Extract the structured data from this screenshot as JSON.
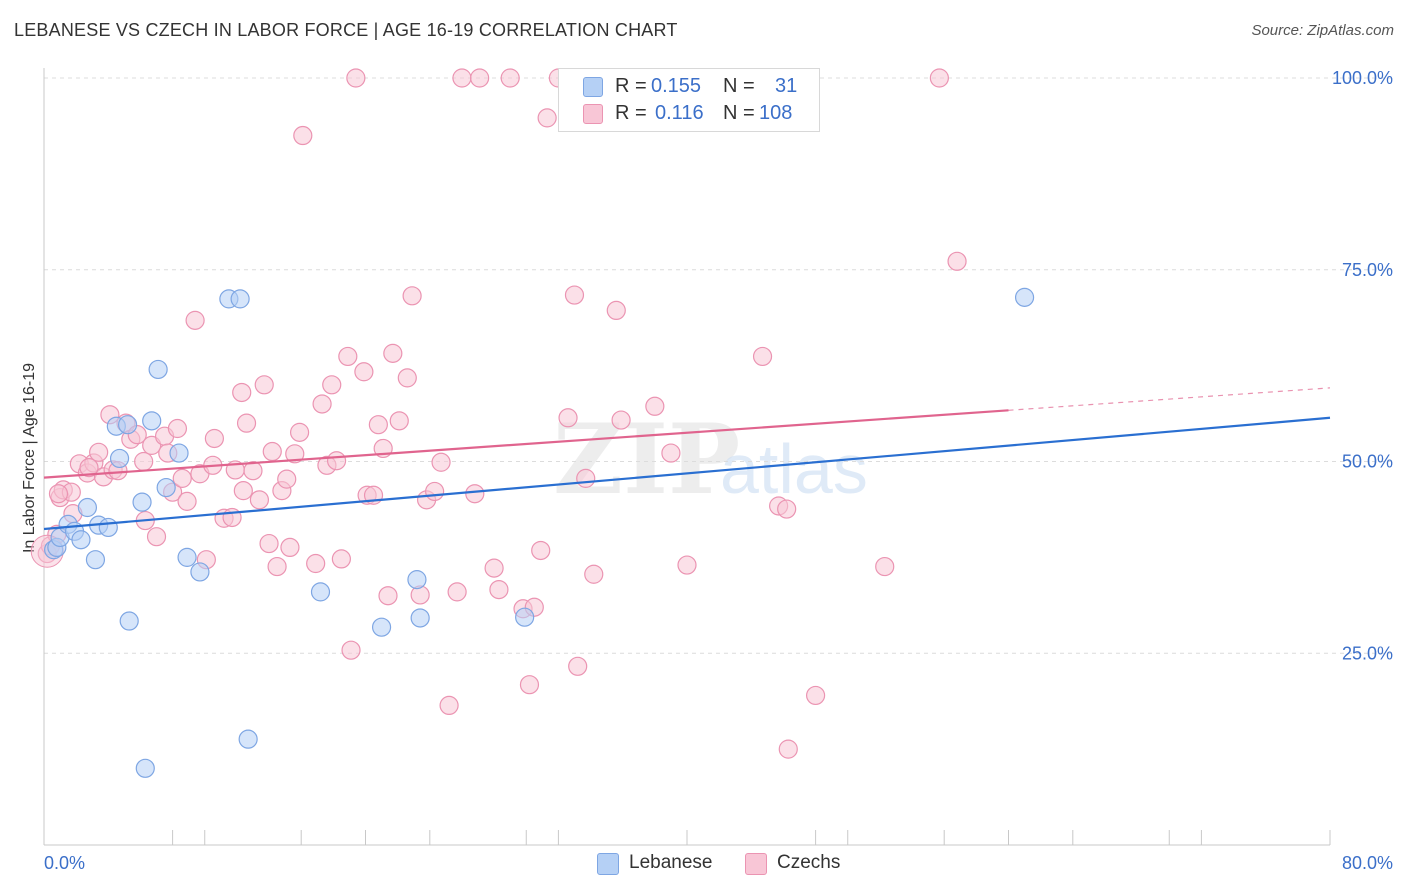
{
  "header": {
    "title": "LEBANESE VS CZECH IN LABOR FORCE | AGE 16-19 CORRELATION CHART",
    "source": "Source: ZipAtlas.com"
  },
  "watermark": {
    "zip": "ZIP",
    "atlas": "atlas"
  },
  "legend": {
    "rows": [
      {
        "r_label": "R =",
        "r_value": "0.155",
        "n_label": "N =",
        "n_value": "31"
      },
      {
        "r_label": "R =",
        "r_value": "0.116",
        "n_label": "N =",
        "n_value": "108"
      }
    ]
  },
  "bottom_legend": {
    "lebanese": "Lebanese",
    "czechs": "Czechs"
  },
  "colors": {
    "blue_fill": "#b5d0f5",
    "blue_stroke": "#7ea6e3",
    "blue_line": "#2a6fd1",
    "pink_fill": "#f8c6d6",
    "pink_stroke": "#eb94b2",
    "pink_line": "#e0648e",
    "grid": "#dcdcdc",
    "tick_label": "#3b6fc9"
  },
  "chart_data": {
    "type": "scatter",
    "title": "LEBANESE VS CZECH IN LABOR FORCE | AGE 16-19 CORRELATION CHART",
    "xlabel": "",
    "ylabel": "In Labor Force | Age 16-19",
    "xlim": [
      0,
      80
    ],
    "ylim": [
      0,
      105
    ],
    "x_tick_labels": [
      "0.0%",
      "80.0%"
    ],
    "y_ticks": [
      25,
      50,
      75,
      100
    ],
    "y_tick_labels": [
      "25.0%",
      "50.0%",
      "75.0%",
      "100.0%"
    ],
    "grid": true,
    "series": [
      {
        "name": "Lebanese",
        "r": 0.155,
        "n": 31,
        "trend": {
          "x": [
            0,
            80
          ],
          "y": [
            41.2,
            55.7
          ],
          "dashed_from": null
        },
        "points": [
          [
            0.6,
            38.5
          ],
          [
            0.8,
            38.8
          ],
          [
            1.0,
            40.1
          ],
          [
            1.5,
            41.8
          ],
          [
            1.9,
            40.9
          ],
          [
            2.3,
            39.8
          ],
          [
            2.7,
            44.0
          ],
          [
            3.2,
            37.2
          ],
          [
            3.4,
            41.7
          ],
          [
            4.0,
            41.4
          ],
          [
            4.7,
            50.4
          ],
          [
            4.5,
            54.6
          ],
          [
            5.2,
            54.8
          ],
          [
            6.1,
            44.7
          ],
          [
            6.7,
            55.3
          ],
          [
            7.1,
            62.0
          ],
          [
            7.6,
            46.6
          ],
          [
            8.4,
            51.1
          ],
          [
            8.9,
            37.5
          ],
          [
            9.7,
            35.6
          ],
          [
            11.5,
            71.2
          ],
          [
            12.2,
            71.2
          ],
          [
            12.7,
            13.8
          ],
          [
            17.2,
            33.0
          ],
          [
            21.0,
            28.4
          ],
          [
            23.2,
            34.6
          ],
          [
            23.4,
            29.6
          ],
          [
            29.9,
            29.7
          ],
          [
            6.3,
            10.0
          ],
          [
            5.3,
            29.2
          ],
          [
            61.0,
            71.4
          ]
        ]
      },
      {
        "name": "Czechs",
        "r": 0.116,
        "n": 108,
        "trend": {
          "x": [
            0,
            80
          ],
          "y": [
            47.9,
            59.6
          ],
          "dashed_from": 60
        },
        "points": [
          [
            0.2,
            38.0
          ],
          [
            0.4,
            39.0
          ],
          [
            0.8,
            40.5
          ],
          [
            1.0,
            45.3
          ],
          [
            1.2,
            46.3
          ],
          [
            1.7,
            46.0
          ],
          [
            2.2,
            49.7
          ],
          [
            2.7,
            48.5
          ],
          [
            3.1,
            49.8
          ],
          [
            3.4,
            51.2
          ],
          [
            3.7,
            48.0
          ],
          [
            4.3,
            48.9
          ],
          [
            4.6,
            48.8
          ],
          [
            4.1,
            56.1
          ],
          [
            5.1,
            55.0
          ],
          [
            5.4,
            52.9
          ],
          [
            5.8,
            53.5
          ],
          [
            6.2,
            50.0
          ],
          [
            6.3,
            42.3
          ],
          [
            6.7,
            52.1
          ],
          [
            7.0,
            40.2
          ],
          [
            7.5,
            53.3
          ],
          [
            7.7,
            51.1
          ],
          [
            8.0,
            46.0
          ],
          [
            8.3,
            54.3
          ],
          [
            8.6,
            47.8
          ],
          [
            8.9,
            44.8
          ],
          [
            9.4,
            68.4
          ],
          [
            9.7,
            48.4
          ],
          [
            10.1,
            37.2
          ],
          [
            10.5,
            49.5
          ],
          [
            10.6,
            53.0
          ],
          [
            11.2,
            42.6
          ],
          [
            11.7,
            42.7
          ],
          [
            11.9,
            48.9
          ],
          [
            12.3,
            59.0
          ],
          [
            12.4,
            46.2
          ],
          [
            12.6,
            55.0
          ],
          [
            13.0,
            48.8
          ],
          [
            13.4,
            45.0
          ],
          [
            13.7,
            60.0
          ],
          [
            14.0,
            39.3
          ],
          [
            14.2,
            51.3
          ],
          [
            14.5,
            36.3
          ],
          [
            14.8,
            46.2
          ],
          [
            15.1,
            47.7
          ],
          [
            15.3,
            38.8
          ],
          [
            15.6,
            51.0
          ],
          [
            15.9,
            53.8
          ],
          [
            16.1,
            92.5
          ],
          [
            16.9,
            36.7
          ],
          [
            17.3,
            57.5
          ],
          [
            17.6,
            49.5
          ],
          [
            17.9,
            60.0
          ],
          [
            18.2,
            50.1
          ],
          [
            18.5,
            37.3
          ],
          [
            18.9,
            63.7
          ],
          [
            19.1,
            25.4
          ],
          [
            19.4,
            100.0
          ],
          [
            19.9,
            61.7
          ],
          [
            20.1,
            45.6
          ],
          [
            20.5,
            45.6
          ],
          [
            20.8,
            54.8
          ],
          [
            21.1,
            51.7
          ],
          [
            21.4,
            32.5
          ],
          [
            21.7,
            64.1
          ],
          [
            22.1,
            55.3
          ],
          [
            22.6,
            60.9
          ],
          [
            22.9,
            71.6
          ],
          [
            23.4,
            32.6
          ],
          [
            23.8,
            45.0
          ],
          [
            24.3,
            46.1
          ],
          [
            24.7,
            49.9
          ],
          [
            25.2,
            18.2
          ],
          [
            25.7,
            33.0
          ],
          [
            26.0,
            100.0
          ],
          [
            26.8,
            45.8
          ],
          [
            27.1,
            100.0
          ],
          [
            28.0,
            36.1
          ],
          [
            28.3,
            33.3
          ],
          [
            29.0,
            100.0
          ],
          [
            29.8,
            30.8
          ],
          [
            30.2,
            20.9
          ],
          [
            30.5,
            31.0
          ],
          [
            30.9,
            38.4
          ],
          [
            31.3,
            94.8
          ],
          [
            32.0,
            100.0
          ],
          [
            32.6,
            55.7
          ],
          [
            33.0,
            71.7
          ],
          [
            33.2,
            23.3
          ],
          [
            33.7,
            47.8
          ],
          [
            34.2,
            35.3
          ],
          [
            35.6,
            69.7
          ],
          [
            35.9,
            55.4
          ],
          [
            38.0,
            57.2
          ],
          [
            39.0,
            51.1
          ],
          [
            40.0,
            36.5
          ],
          [
            44.7,
            63.7
          ],
          [
            45.7,
            44.2
          ],
          [
            46.2,
            43.8
          ],
          [
            46.3,
            12.5
          ],
          [
            48.0,
            19.5
          ],
          [
            52.3,
            36.3
          ],
          [
            55.7,
            100.0
          ],
          [
            56.8,
            76.1
          ],
          [
            1.8,
            43.2
          ],
          [
            0.9,
            45.8
          ],
          [
            2.8,
            49.2
          ]
        ]
      }
    ]
  }
}
